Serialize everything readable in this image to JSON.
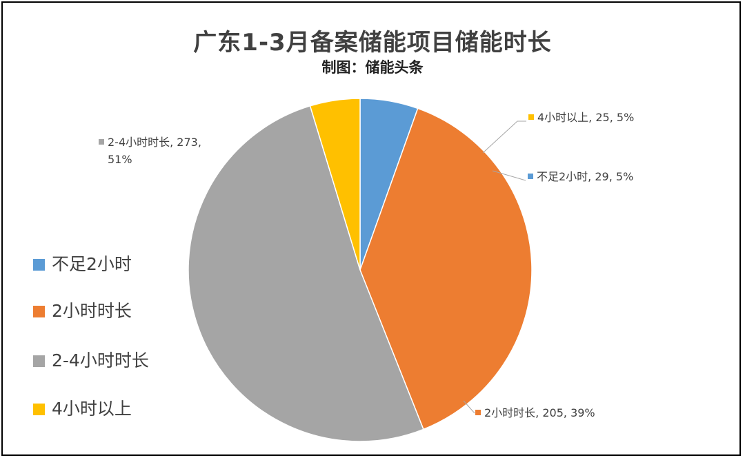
{
  "chart_data": {
    "type": "pie",
    "title": "广东1-3月备案储能项目储能时长",
    "subtitle": "制图：储能头条",
    "legend_position": "left",
    "slices": [
      {
        "name": "不足2小时",
        "value": 29,
        "percent": "5%",
        "color": "#5B9BD5",
        "label": "不足2小时, 29, 5%"
      },
      {
        "name": "2小时时长",
        "value": 205,
        "percent": "39%",
        "color": "#ED7D31",
        "label": "2小时时长, 205, 39%"
      },
      {
        "name": "2-4小时时长",
        "value": 273,
        "percent": "51%",
        "color": "#A5A5A5",
        "label": "2-4小时时长, 273,",
        "label_line2": "51%"
      },
      {
        "name": "4小时以上",
        "value": 25,
        "percent": "5%",
        "color": "#FFC000",
        "label": "4小时以上, 25, 5%"
      }
    ]
  }
}
